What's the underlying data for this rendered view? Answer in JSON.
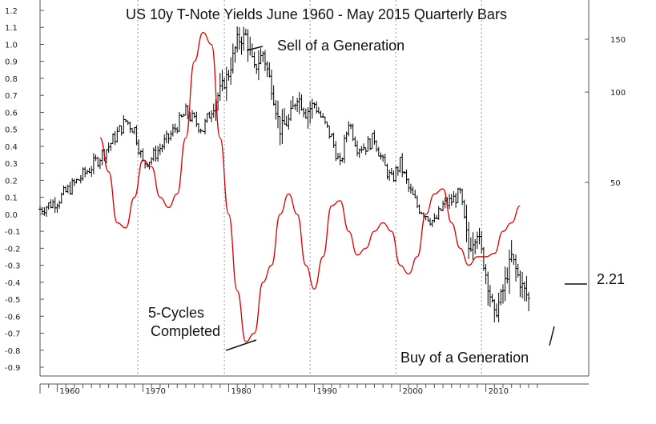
{
  "chart_data": {
    "type": "ohlc-line",
    "title": "US 10y T-Note Yields June 1960 - May 2015 Quarterly Bars",
    "left_axis": {
      "ylim": [
        -0.95,
        1.25
      ],
      "ticks": [
        1.2,
        1.1,
        1.0,
        0.9,
        0.8,
        0.7,
        0.6,
        0.5,
        0.4,
        0.3,
        0.2,
        0.1,
        0.0,
        -0.1,
        -0.2,
        -0.3,
        -0.4,
        -0.5,
        -0.6,
        -0.7,
        -0.8,
        -0.9
      ],
      "tick_labels": [
        "1.2",
        "1.1",
        "1.0",
        "0.9",
        "0.8",
        "0.7",
        "0.6",
        "0.5",
        "0.4",
        "0.3",
        "0.2",
        "0.1",
        "0.0",
        "-0.1",
        "-0.2",
        "-0.3",
        "-0.4",
        "-0.5",
        "-0.6",
        "-0.7",
        "-0.8",
        "-0.9"
      ]
    },
    "right_axis": {
      "scale": "log",
      "ticks": [
        150,
        100,
        50
      ],
      "tick_labels": [
        "150",
        "100",
        "50"
      ]
    },
    "x_axis": {
      "xlim": [
        1958,
        2022
      ],
      "ticks": [
        1960,
        1970,
        1980,
        1990,
        2000,
        2010
      ],
      "tick_labels": [
        "1960",
        "1970",
        "1980",
        "1990",
        "2000",
        "2010"
      ],
      "decade_gridlines": [
        1969.4,
        1979.5,
        1989.5,
        1999.5,
        2009.5
      ]
    },
    "bars_series": {
      "name": "",
      "color": "#000000",
      "x": [
        1958,
        1960,
        1962,
        1964,
        1966,
        1968,
        1969,
        1970,
        1971,
        1973,
        1975,
        1977,
        1978,
        1980,
        1981,
        1982,
        1983,
        1984,
        1985,
        1986,
        1987,
        1988,
        1989,
        1990,
        1991,
        1992,
        1993,
        1994,
        1995,
        1996,
        1997,
        1998,
        1999,
        2000,
        2001,
        2002,
        2003,
        2004,
        2005,
        2006,
        2007,
        2008,
        2009,
        2010,
        2011,
        2012,
        2013,
        2014,
        2015
      ],
      "y": [
        0.03,
        0.08,
        0.18,
        0.28,
        0.4,
        0.55,
        0.5,
        0.3,
        0.33,
        0.45,
        0.6,
        0.5,
        0.62,
        0.83,
        1.02,
        1.05,
        0.85,
        0.95,
        0.75,
        0.5,
        0.55,
        0.7,
        0.6,
        0.65,
        0.55,
        0.45,
        0.28,
        0.55,
        0.4,
        0.4,
        0.45,
        0.3,
        0.2,
        0.3,
        0.15,
        0.05,
        0.0,
        -0.05,
        0.05,
        0.08,
        0.12,
        -0.2,
        -0.1,
        -0.35,
        -0.6,
        -0.45,
        -0.25,
        -0.4,
        -0.5
      ]
    },
    "cycle_series": {
      "name": "",
      "color": "#dd0000",
      "x": [
        1965,
        1966,
        1967,
        1968,
        1969,
        1970,
        1971,
        1972,
        1973,
        1974,
        1975,
        1976,
        1977,
        1978,
        1979,
        1980,
        1981,
        1982,
        1983,
        1984,
        1985,
        1986,
        1987,
        1988,
        1989,
        1990,
        1991,
        1992,
        1993,
        1994,
        1995,
        1996,
        1997,
        1998,
        1999,
        2000,
        2001,
        2002,
        2003,
        2004,
        2005,
        2006,
        2007,
        2008,
        2009,
        2010,
        2011,
        2012,
        2013,
        2014
      ],
      "y": [
        0.45,
        0.25,
        -0.05,
        -0.08,
        0.1,
        0.32,
        0.28,
        0.1,
        0.04,
        0.12,
        0.45,
        0.9,
        1.07,
        1.0,
        0.45,
        0.0,
        -0.45,
        -0.75,
        -0.7,
        -0.4,
        -0.3,
        0.0,
        0.12,
        0.0,
        -0.3,
        -0.44,
        -0.25,
        0.05,
        0.08,
        -0.1,
        -0.24,
        -0.2,
        -0.1,
        -0.05,
        -0.1,
        -0.3,
        -0.35,
        -0.25,
        0.0,
        0.12,
        0.15,
        -0.05,
        -0.2,
        -0.3,
        -0.25,
        -0.25,
        -0.23,
        -0.1,
        -0.05,
        0.05
      ]
    },
    "annotations": [
      {
        "name": "sell",
        "text": "Sell of a Generation"
      },
      {
        "name": "cycles-1",
        "text": "5-Cycles"
      },
      {
        "name": "cycles-2",
        "text": "Completed"
      },
      {
        "name": "buy",
        "text": "Buy of a Generation"
      },
      {
        "name": "last-value",
        "text": "2.21"
      }
    ]
  }
}
